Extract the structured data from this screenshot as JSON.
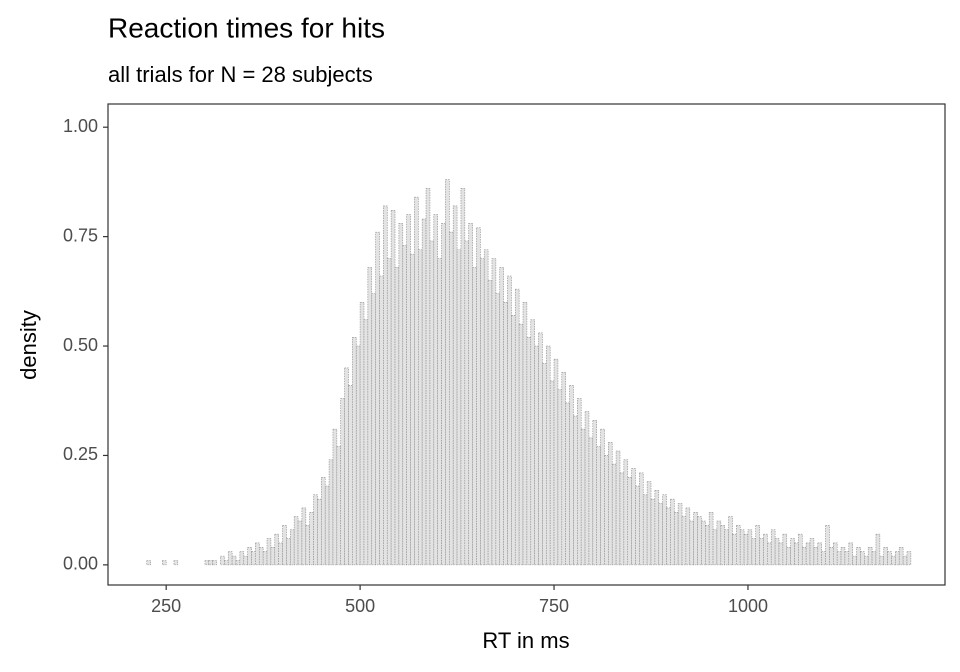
{
  "chart_data": {
    "type": "histogram",
    "title": "Reaction times for hits",
    "subtitle": "all trials for N = 28 subjects",
    "xlabel": "RT in ms",
    "ylabel": "density",
    "color": "#e3e3e3",
    "edge_color": "#8c8c8c",
    "xlim": [
      175,
      1254
    ],
    "ylim": [
      -0.046,
      1.053
    ],
    "xticks": [
      250,
      500,
      750,
      1000
    ],
    "yticks": [
      {
        "value": 0,
        "label": "0.00"
      },
      {
        "value": 0.25,
        "label": "0.25"
      },
      {
        "value": 0.5,
        "label": "0.50"
      },
      {
        "value": 0.75,
        "label": "0.75"
      },
      {
        "value": 1,
        "label": "1.00"
      }
    ],
    "bins": [
      220,
      225,
      230,
      235,
      240,
      245,
      250,
      255,
      260,
      265,
      270,
      275,
      280,
      285,
      290,
      295,
      300,
      305,
      310,
      315,
      320,
      325,
      330,
      335,
      340,
      345,
      350,
      355,
      360,
      365,
      370,
      375,
      380,
      385,
      390,
      395,
      400,
      405,
      410,
      415,
      420,
      425,
      430,
      435,
      440,
      445,
      450,
      455,
      460,
      465,
      470,
      475,
      480,
      485,
      490,
      495,
      500,
      505,
      510,
      515,
      520,
      525,
      530,
      535,
      540,
      545,
      550,
      555,
      560,
      565,
      570,
      575,
      580,
      585,
      590,
      595,
      600,
      605,
      610,
      615,
      620,
      625,
      630,
      635,
      640,
      645,
      650,
      655,
      660,
      665,
      670,
      675,
      680,
      685,
      690,
      695,
      700,
      705,
      710,
      715,
      720,
      725,
      730,
      735,
      740,
      745,
      750,
      755,
      760,
      765,
      770,
      775,
      780,
      785,
      790,
      795,
      800,
      805,
      810,
      815,
      820,
      825,
      830,
      835,
      840,
      845,
      850,
      855,
      860,
      865,
      870,
      875,
      880,
      885,
      890,
      895,
      900,
      905,
      910,
      915,
      920,
      925,
      930,
      935,
      940,
      945,
      950,
      955,
      960,
      965,
      970,
      975,
      980,
      985,
      990,
      995,
      1000,
      1005,
      1010,
      1015,
      1020,
      1025,
      1030,
      1035,
      1040,
      1045,
      1050,
      1055,
      1060,
      1065,
      1070,
      1075,
      1080,
      1085,
      1090,
      1095,
      1100,
      1105,
      1110,
      1115,
      1120,
      1125,
      1130,
      1135,
      1140,
      1145,
      1150,
      1155,
      1160,
      1165,
      1170,
      1175,
      1180,
      1185,
      1190,
      1195,
      1200,
      1205,
      1210
    ],
    "values": [
      0,
      0.01,
      0,
      0,
      0,
      0.01,
      0,
      0,
      0.01,
      0,
      0,
      0,
      0,
      0,
      0,
      0,
      0.01,
      0.01,
      0.01,
      0,
      0.02,
      0.01,
      0.03,
      0.02,
      0.01,
      0.03,
      0.02,
      0.04,
      0.03,
      0.05,
      0.04,
      0.03,
      0.06,
      0.04,
      0.07,
      0.05,
      0.09,
      0.06,
      0.08,
      0.11,
      0.1,
      0.13,
      0.09,
      0.12,
      0.16,
      0.15,
      0.2,
      0.18,
      0.24,
      0.31,
      0.27,
      0.38,
      0.45,
      0.41,
      0.52,
      0.5,
      0.6,
      0.56,
      0.68,
      0.62,
      0.76,
      0.66,
      0.82,
      0.7,
      0.81,
      0.68,
      0.78,
      0.73,
      0.8,
      0.71,
      0.84,
      0.72,
      0.79,
      0.86,
      0.74,
      0.8,
      0.7,
      0.78,
      0.88,
      0.76,
      0.82,
      0.72,
      0.86,
      0.74,
      0.78,
      0.68,
      0.77,
      0.7,
      0.72,
      0.65,
      0.7,
      0.62,
      0.68,
      0.6,
      0.66,
      0.57,
      0.63,
      0.55,
      0.6,
      0.52,
      0.56,
      0.5,
      0.53,
      0.46,
      0.5,
      0.42,
      0.47,
      0.4,
      0.44,
      0.37,
      0.41,
      0.34,
      0.38,
      0.31,
      0.35,
      0.29,
      0.33,
      0.27,
      0.31,
      0.25,
      0.28,
      0.23,
      0.26,
      0.21,
      0.24,
      0.2,
      0.22,
      0.18,
      0.21,
      0.16,
      0.19,
      0.15,
      0.17,
      0.14,
      0.16,
      0.13,
      0.15,
      0.12,
      0.14,
      0.11,
      0.13,
      0.1,
      0.12,
      0.11,
      0.1,
      0.09,
      0.12,
      0.08,
      0.1,
      0.09,
      0.08,
      0.11,
      0.07,
      0.09,
      0.08,
      0.07,
      0.08,
      0.06,
      0.09,
      0.06,
      0.07,
      0.05,
      0.08,
      0.06,
      0.05,
      0.07,
      0.04,
      0.06,
      0.05,
      0.07,
      0.04,
      0.05,
      0.06,
      0.04,
      0.05,
      0.03,
      0.09,
      0.04,
      0.05,
      0.03,
      0.04,
      0.03,
      0.05,
      0.02,
      0.04,
      0.03,
      0.02,
      0.04,
      0.03,
      0.07,
      0.02,
      0.04,
      0.03,
      0.02,
      0.03,
      0.04,
      0.02,
      0.03
    ]
  }
}
